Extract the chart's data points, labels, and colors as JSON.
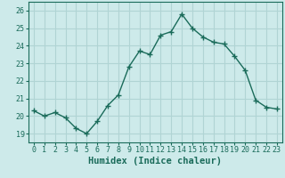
{
  "x": [
    0,
    1,
    2,
    3,
    4,
    5,
    6,
    7,
    8,
    9,
    10,
    11,
    12,
    13,
    14,
    15,
    16,
    17,
    18,
    19,
    20,
    21,
    22,
    23
  ],
  "y": [
    20.3,
    20.0,
    20.2,
    19.9,
    19.3,
    19.0,
    19.7,
    20.6,
    21.2,
    22.8,
    23.7,
    23.5,
    24.6,
    24.8,
    25.8,
    25.0,
    24.5,
    24.2,
    24.1,
    23.4,
    22.6,
    20.9,
    20.5,
    20.4
  ],
  "line_color": "#1a6b5a",
  "marker": "+",
  "marker_size": 4,
  "line_width": 1.0,
  "xlabel": "Humidex (Indice chaleur)",
  "ylim": [
    18.5,
    26.5
  ],
  "xlim": [
    -0.5,
    23.5
  ],
  "yticks": [
    19,
    20,
    21,
    22,
    23,
    24,
    25,
    26
  ],
  "xticks": [
    0,
    1,
    2,
    3,
    4,
    5,
    6,
    7,
    8,
    9,
    10,
    11,
    12,
    13,
    14,
    15,
    16,
    17,
    18,
    19,
    20,
    21,
    22,
    23
  ],
  "bg_color": "#cdeaea",
  "grid_color": "#b0d4d4",
  "tick_label_fontsize": 6.0,
  "xlabel_fontsize": 7.5
}
